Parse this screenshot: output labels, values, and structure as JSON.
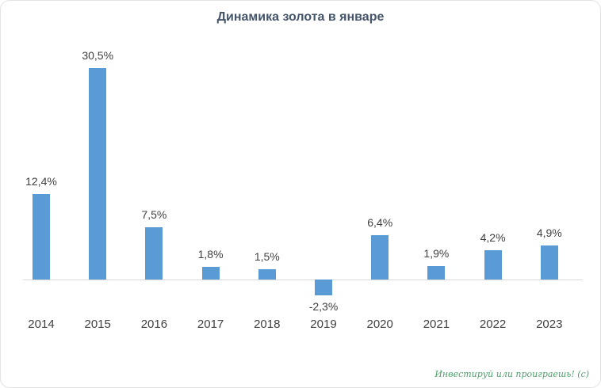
{
  "chart_data": {
    "type": "bar",
    "title": "Динамика золота в январе",
    "categories": [
      "2014",
      "2015",
      "2016",
      "2017",
      "2018",
      "2019",
      "2020",
      "2021",
      "2022",
      "2023"
    ],
    "values": [
      12.4,
      30.5,
      7.5,
      1.8,
      1.5,
      -2.3,
      6.4,
      1.9,
      4.2,
      4.9
    ],
    "value_labels": [
      "12,4%",
      "30,5%",
      "7,5%",
      "1,8%",
      "1,5%",
      "-2,3%",
      "6,4%",
      "1,9%",
      "4,2%",
      "4,9%"
    ],
    "bar_color": "#5B9BD5",
    "xlabel": "",
    "ylabel": "",
    "ylim": [
      -5,
      32
    ],
    "grid": false,
    "legend": "none",
    "baseline": 0
  },
  "watermark": {
    "text": "Инвестируй или проиграешь! (с)",
    "color": "#4ca06b"
  }
}
